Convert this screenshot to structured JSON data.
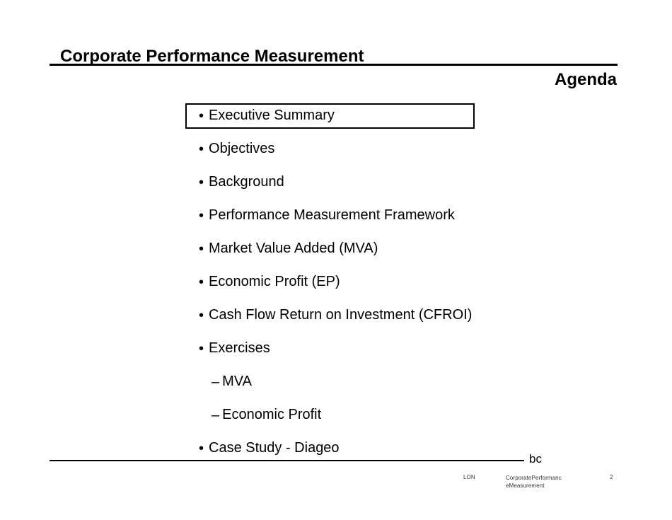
{
  "slide": {
    "header_title": "Corporate Performance Measurement",
    "page_title": "Agenda"
  },
  "agenda": {
    "bullet_char": "•",
    "dash_char": "–",
    "items": [
      {
        "label": "Executive Summary",
        "level": 1,
        "boxed": true
      },
      {
        "label": "Objectives",
        "level": 1
      },
      {
        "label": "Background",
        "level": 1
      },
      {
        "label": "Performance Measurement Framework",
        "level": 1
      },
      {
        "label": "Market Value Added (MVA)",
        "level": 1
      },
      {
        "label": "Economic Profit (EP)",
        "level": 1
      },
      {
        "label": "Cash Flow Return on Investment (CFROI)",
        "level": 1
      },
      {
        "label": "Exercises",
        "level": 1
      },
      {
        "label": "MVA",
        "level": 2
      },
      {
        "label": "Economic Profit",
        "level": 2
      },
      {
        "label": "Case Study - Diageo",
        "level": 1
      }
    ]
  },
  "footer": {
    "logo_text": "bc",
    "office": "LON",
    "doc_name_line1": "CorporatePerformanc",
    "doc_name_line2": "eMeasurement",
    "page_number": "2"
  }
}
